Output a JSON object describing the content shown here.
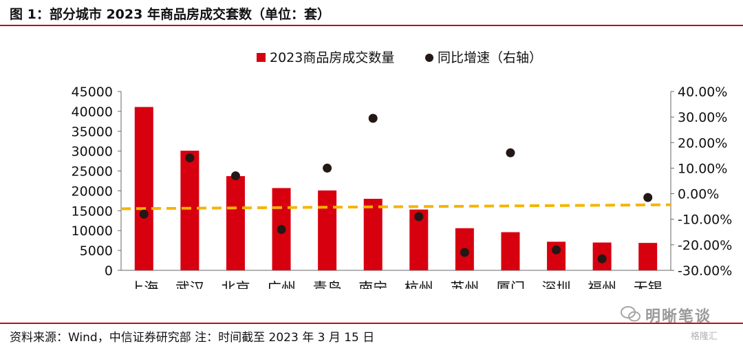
{
  "figure": {
    "title": "图 1：部分城市 2023 年商品房成交套数（单位：套）",
    "source": "资料来源：Wind，中信证券研究部  注：时间截至 2023 年 3 月 15 日",
    "watermark": "明晰笔谈",
    "watermark_sub": "格隆汇"
  },
  "chart_data": {
    "type": "bar",
    "categories": [
      "上海",
      "武汉",
      "北京",
      "广州",
      "青岛",
      "南宁",
      "杭州",
      "苏州",
      "厦门",
      "深圳",
      "福州",
      "无锡"
    ],
    "series": [
      {
        "name": "2023商品房成交数量",
        "type": "bar",
        "axis": "left",
        "color": "#d7000f",
        "values": [
          41100,
          30100,
          23700,
          20700,
          20100,
          18000,
          15300,
          10600,
          9600,
          7200,
          7000,
          6900
        ]
      },
      {
        "name": "同比增速（右轴）",
        "type": "scatter",
        "axis": "right",
        "color": "#231815",
        "values": [
          -8.0,
          14.0,
          7.0,
          -14.0,
          10.0,
          29.5,
          -9.0,
          -23.0,
          16.0,
          -22.0,
          -25.5,
          -1.5
        ]
      }
    ],
    "left_axis": {
      "ylim": [
        0,
        45000
      ],
      "ticks": [
        "0",
        "5000",
        "10000",
        "15000",
        "20000",
        "25000",
        "30000",
        "35000",
        "40000",
        "45000"
      ]
    },
    "right_axis": {
      "ylim": [
        -30,
        40
      ],
      "ticks": [
        "-30.00%",
        "-20.00%",
        "-10.00%",
        "0.00%",
        "10.00%",
        "20.00%",
        "30.00%",
        "40.00%"
      ]
    },
    "trend_line": {
      "color": "#f5b400",
      "start_value": 15500,
      "end_value": 16500
    },
    "legend_position": "top-center",
    "grid": false
  }
}
